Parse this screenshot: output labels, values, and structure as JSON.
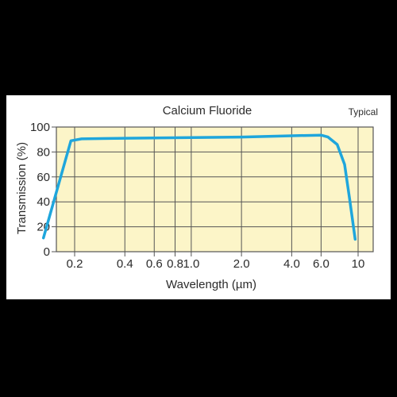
{
  "chart_data": {
    "type": "line",
    "title": "Calcium Fluoride",
    "annotation": "Typical",
    "xlabel": "Wavelength (µm)",
    "ylabel": "Transmission (%)",
    "x_scale": "log",
    "ylim": [
      0,
      100
    ],
    "x_ticks": [
      {
        "value": 0.2,
        "label": "0.2"
      },
      {
        "value": 0.4,
        "label": "0.4"
      },
      {
        "value": 0.6,
        "label": "0.6"
      },
      {
        "value": 0.8,
        "label": "0.8"
      },
      {
        "value": 1.0,
        "label": "1.0"
      },
      {
        "value": 2.0,
        "label": "2.0"
      },
      {
        "value": 4.0,
        "label": "4.0"
      },
      {
        "value": 6.0,
        "label": "6.0"
      },
      {
        "value": 10,
        "label": "10"
      }
    ],
    "y_ticks": [
      {
        "value": 0,
        "label": "0"
      },
      {
        "value": 20,
        "label": "20"
      },
      {
        "value": 40,
        "label": "40"
      },
      {
        "value": 60,
        "label": "60"
      },
      {
        "value": 80,
        "label": "80"
      },
      {
        "value": 100,
        "label": "100"
      }
    ],
    "grid": true,
    "colors": {
      "plot_background": "#fcf5c8",
      "line": "#1fa6dc",
      "grid": "#555555"
    },
    "series": [
      {
        "values": [
          {
            "x": 0.13,
            "y": 11
          },
          {
            "x": 0.19,
            "y": 89
          },
          {
            "x": 0.22,
            "y": 90.5
          },
          {
            "x": 0.4,
            "y": 91
          },
          {
            "x": 1.0,
            "y": 91.5
          },
          {
            "x": 2.0,
            "y": 92
          },
          {
            "x": 4.0,
            "y": 93
          },
          {
            "x": 6.0,
            "y": 93.5
          },
          {
            "x": 6.6,
            "y": 92
          },
          {
            "x": 7.5,
            "y": 86
          },
          {
            "x": 8.3,
            "y": 70
          },
          {
            "x": 8.9,
            "y": 42
          },
          {
            "x": 9.6,
            "y": 10
          }
        ]
      }
    ]
  }
}
